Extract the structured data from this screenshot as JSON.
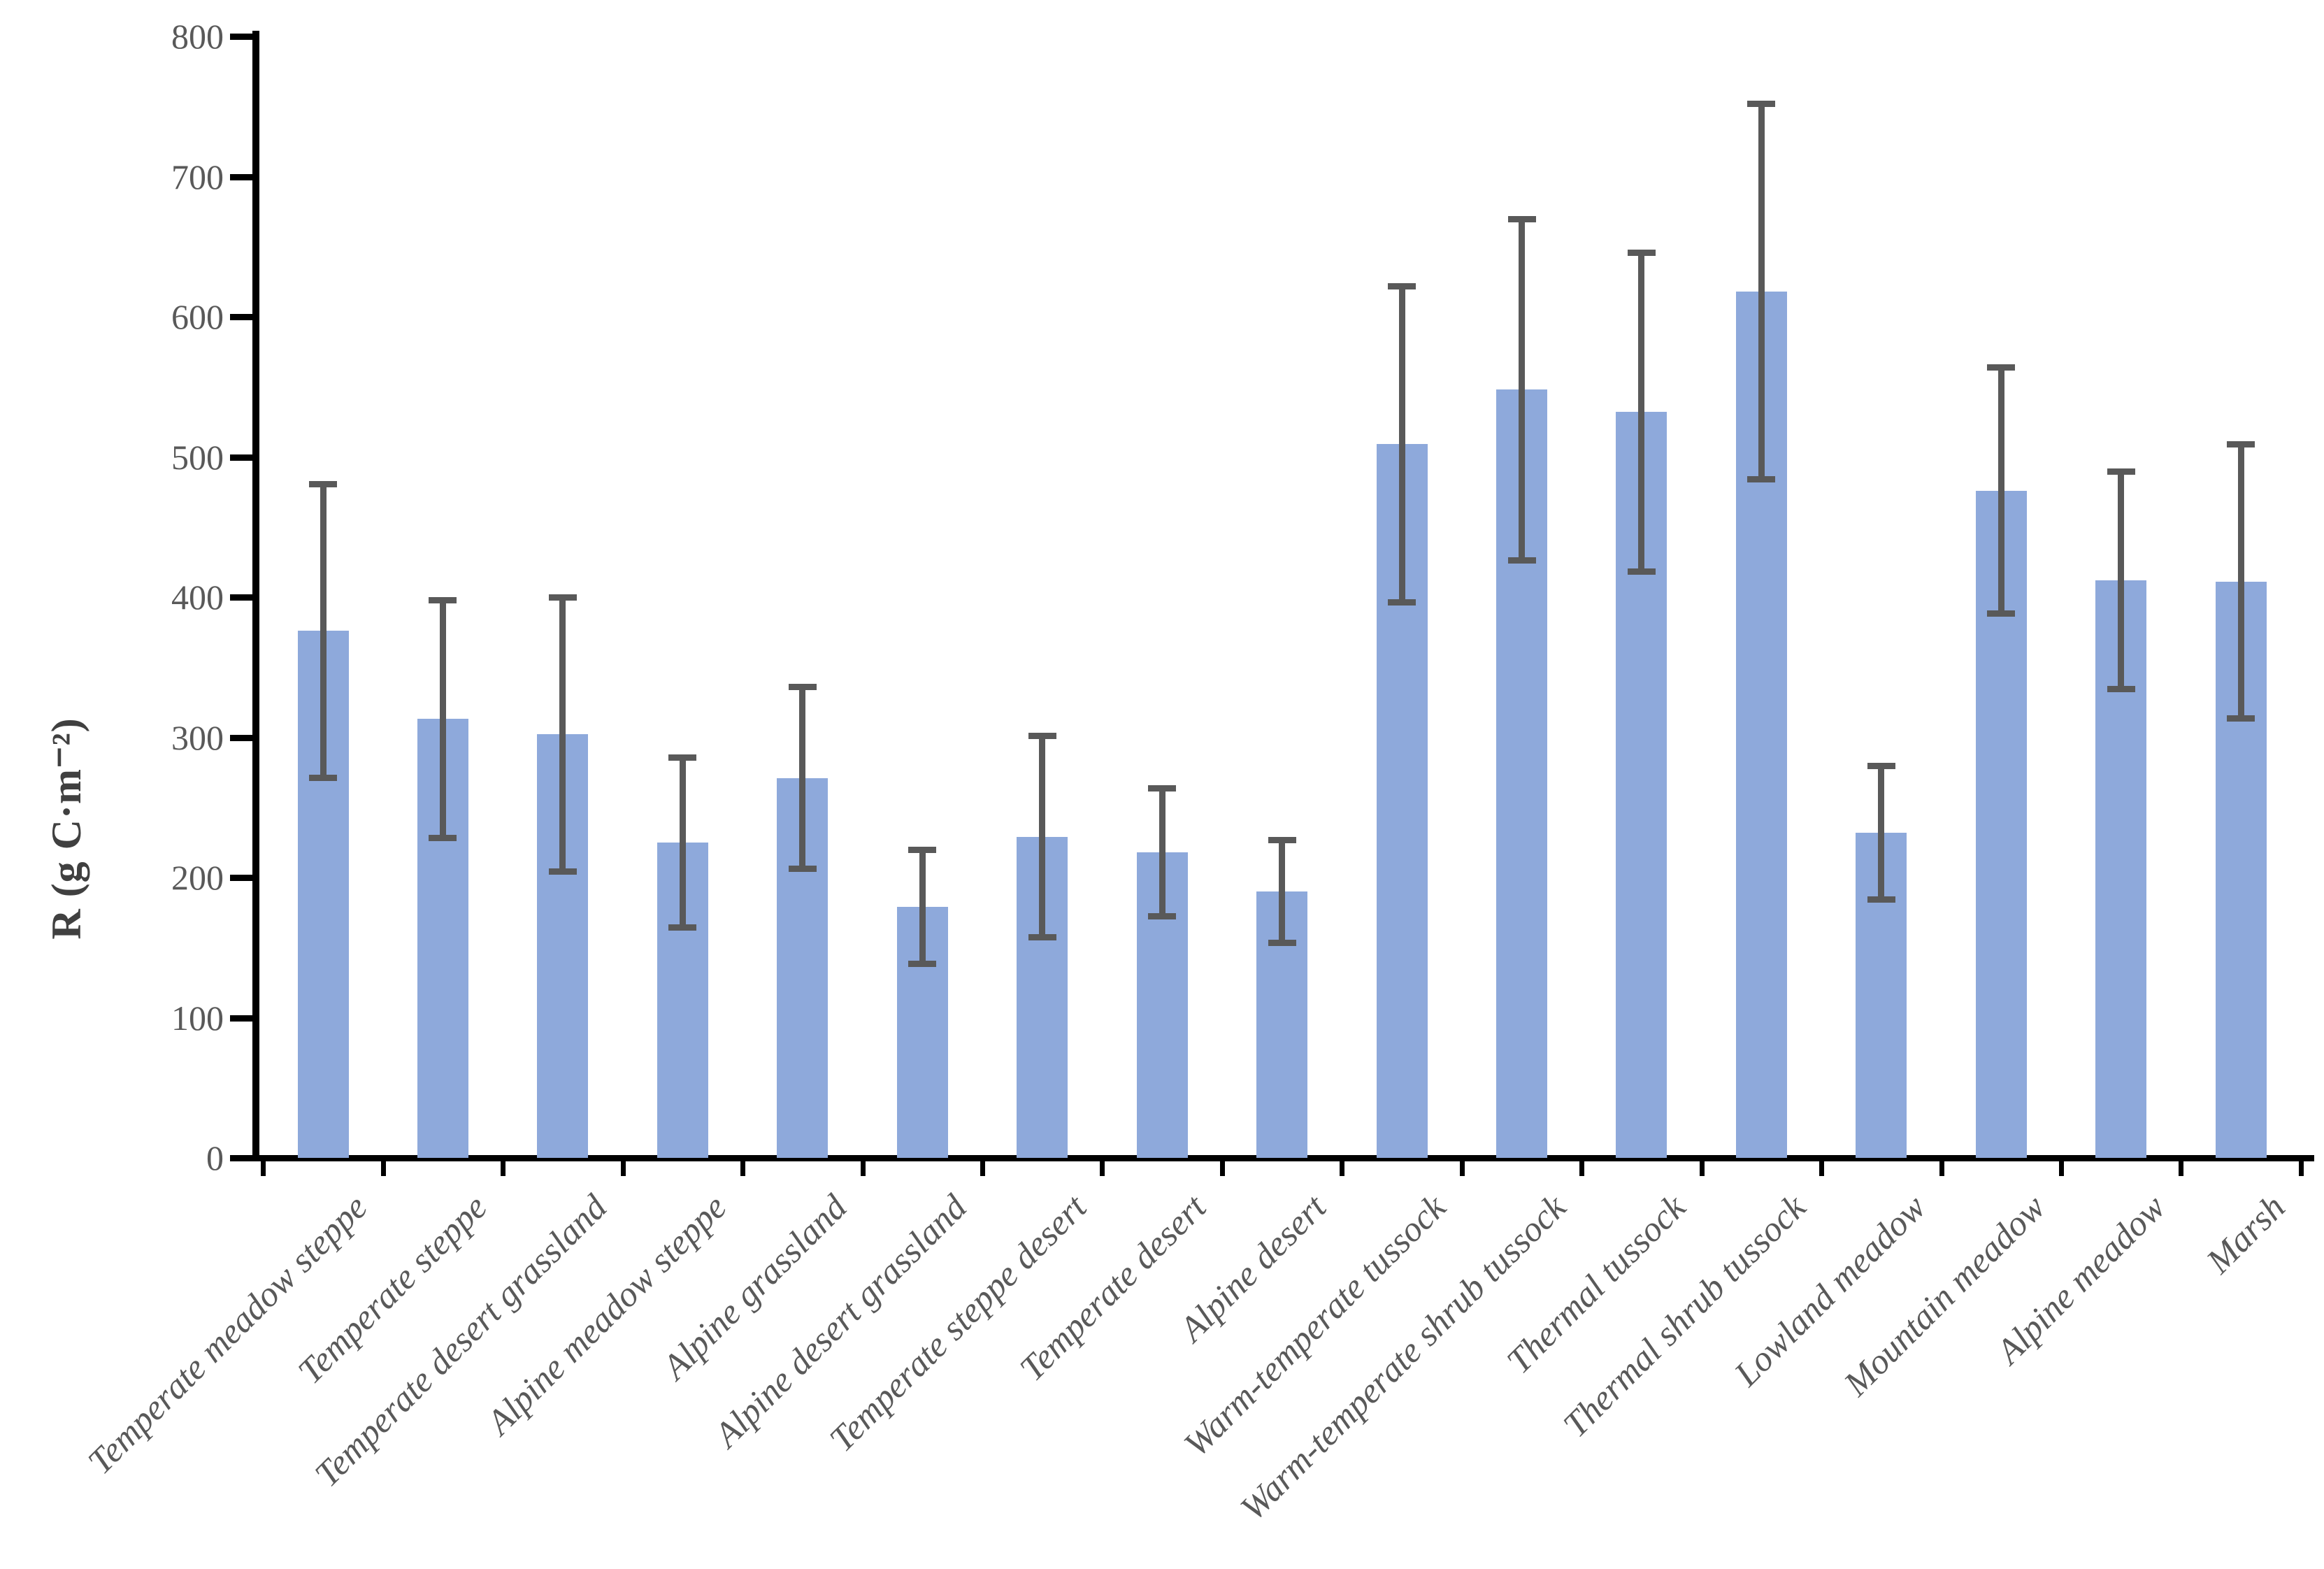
{
  "chart_data": {
    "type": "bar",
    "title": "",
    "xlabel": "",
    "ylabel": "R (g C·m⁻²)",
    "ylim": [
      0,
      800
    ],
    "ytick_step": 100,
    "ytick_labels": [
      "0",
      "100",
      "200",
      "300",
      "400",
      "500",
      "600",
      "700",
      "800"
    ],
    "grid": false,
    "legend": "none",
    "bar_color": "#8EA9DB",
    "error_bar_color": "#595959",
    "axis_color": "#000000",
    "tick_label_color": "#595959",
    "categories": [
      "Temperate meadow steppe",
      "Temperate steppe",
      "Temperate desert grassland",
      "Alpine meadow steppe",
      "Alpine grassland",
      "Alpine desert grassland",
      "Temperate steppe desert",
      "Temperate desert",
      "Alpine desert",
      "Warm-temperate tussock",
      "Warm-temperate shrub tussock",
      "Thermal tussock",
      "Thermal shrub tussock",
      "Lowland meadow",
      "Mountain meadow",
      "Alpine meadow",
      "Marsh"
    ],
    "values": [
      376,
      313,
      302,
      225,
      271,
      179,
      229,
      218,
      190,
      509,
      548,
      532,
      618,
      232,
      476,
      412,
      411
    ],
    "errors": [
      105,
      85,
      98,
      61,
      65,
      41,
      72,
      46,
      37,
      113,
      122,
      114,
      134,
      48,
      88,
      78,
      98
    ]
  }
}
